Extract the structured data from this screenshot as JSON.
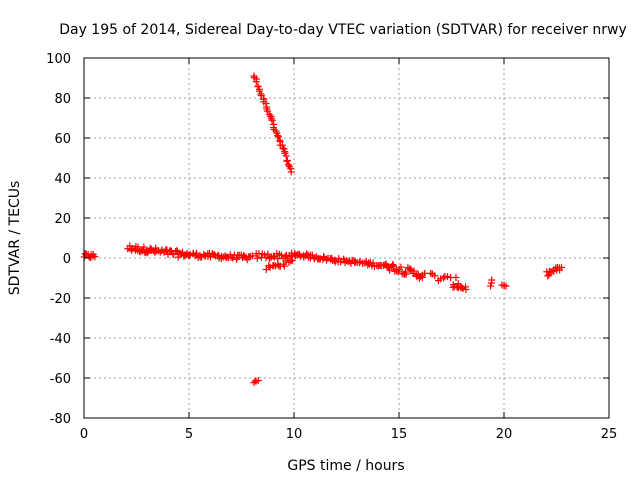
{
  "chart_data": {
    "type": "scatter",
    "title": "Day 195 of 2014, Sidereal Day-to-day VTEC variation (SDTVAR) for receiver nrwy",
    "xlabel": "GPS time / hours",
    "ylabel": "SDTVAR / TECUs",
    "xlim": [
      0,
      25
    ],
    "ylim": [
      -80,
      100
    ],
    "xticks": [
      0,
      5,
      10,
      15,
      20,
      25
    ],
    "yticks": [
      -80,
      -60,
      -40,
      -20,
      0,
      20,
      40,
      60,
      80,
      100
    ],
    "grid": true,
    "marker": "plus",
    "color": "#ff0000",
    "series": [
      {
        "name": "SDTVAR",
        "segments": [
          {
            "x0": 0.0,
            "x1": 0.5,
            "y0": 1,
            "y1": 1,
            "n": 12,
            "jitter": 1.2
          },
          {
            "x0": 2.1,
            "x1": 3.0,
            "y0": 5,
            "y1": 4,
            "n": 20,
            "jitter": 1.5
          },
          {
            "x0": 3.0,
            "x1": 4.5,
            "y0": 4,
            "y1": 2,
            "n": 30,
            "jitter": 1.6
          },
          {
            "x0": 4.5,
            "x1": 8.0,
            "y0": 2,
            "y1": 0,
            "n": 60,
            "jitter": 1.2
          },
          {
            "x0": 8.2,
            "x1": 10.0,
            "y0": 1,
            "y1": 1,
            "n": 25,
            "jitter": 1.5
          },
          {
            "x0": 8.7,
            "x1": 9.9,
            "y0": -5,
            "y1": -2,
            "n": 15,
            "jitter": 1.2
          },
          {
            "x0": 10.0,
            "x1": 12.0,
            "y0": 2,
            "y1": -1,
            "n": 35,
            "jitter": 1.0
          },
          {
            "x0": 12.0,
            "x1": 14.5,
            "y0": -1,
            "y1": -4,
            "n": 40,
            "jitter": 1.0
          },
          {
            "x0": 14.5,
            "x1": 16.2,
            "y0": -4,
            "y1": -9,
            "n": 30,
            "jitter": 2.0
          },
          {
            "x0": 16.5,
            "x1": 17.8,
            "y0": -9,
            "y1": -12,
            "n": 12,
            "jitter": 2.0
          },
          {
            "x0": 17.6,
            "x1": 18.2,
            "y0": -14,
            "y1": -15,
            "n": 10,
            "jitter": 1.0
          },
          {
            "x0": 19.4,
            "x1": 19.4,
            "y0": -11,
            "y1": -14,
            "n": 3,
            "jitter": 0.0
          },
          {
            "x0": 19.9,
            "x1": 20.1,
            "y0": -14,
            "y1": -14,
            "n": 4,
            "jitter": 0.5
          },
          {
            "x0": 22.0,
            "x1": 22.7,
            "y0": -8,
            "y1": -5,
            "n": 15,
            "jitter": 1.2
          },
          {
            "x0": 8.1,
            "x1": 9.9,
            "y0": 91,
            "y1": 43,
            "n": 45,
            "jitter": 0.8
          },
          {
            "x0": 8.1,
            "x1": 8.3,
            "y0": -62,
            "y1": -61,
            "n": 4,
            "jitter": 0.5
          }
        ]
      }
    ]
  }
}
